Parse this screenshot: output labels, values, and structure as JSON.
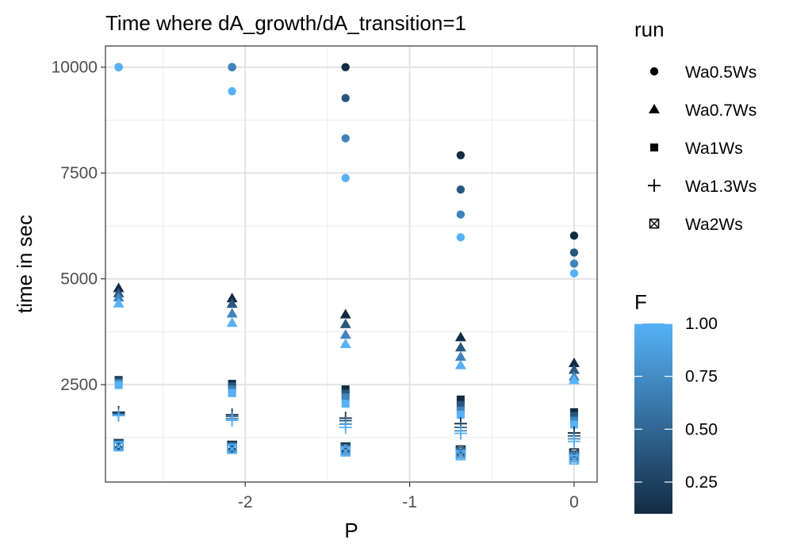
{
  "chart_data": {
    "type": "scatter",
    "title": "Time where dA_growth/dA_transition=1",
    "xlabel": "P",
    "ylabel": "time in sec",
    "xlim": [
      -2.85,
      0.14
    ],
    "ylim": [
      200,
      10500
    ],
    "x_ticks": [
      -2,
      -1,
      0
    ],
    "x_tick_labels": [
      "-2",
      "-1",
      "0"
    ],
    "y_ticks": [
      2500,
      5000,
      7500,
      10000
    ],
    "y_tick_labels": [
      "2500",
      "5000",
      "7500",
      "10000"
    ],
    "grid": true,
    "legend": {
      "placement": "right",
      "shape_title": "run",
      "color_title": "F",
      "colorbar_ticks": [
        0.25,
        0.5,
        0.75,
        1.0
      ],
      "colorbar_tick_labels": [
        "0.25",
        "0.50",
        "0.75",
        "1.00"
      ],
      "colorbar_range": [
        0.1,
        1.0
      ],
      "color_low": "#132B43",
      "color_high": "#56B1F7"
    },
    "series": [
      {
        "name": "Wa0.5Ws",
        "shape": "circle",
        "points": [
          {
            "x": -2.77,
            "y": 10000,
            "f": 0.1
          },
          {
            "x": -2.77,
            "y": 10000,
            "f": 0.4
          },
          {
            "x": -2.77,
            "y": 10000,
            "f": 0.7
          },
          {
            "x": -2.77,
            "y": 10000,
            "f": 1.0
          },
          {
            "x": -2.08,
            "y": 10000,
            "f": 0.1
          },
          {
            "x": -2.08,
            "y": 10000,
            "f": 0.4
          },
          {
            "x": -2.08,
            "y": 10000,
            "f": 0.7
          },
          {
            "x": -2.08,
            "y": 9430,
            "f": 1.0
          },
          {
            "x": -1.39,
            "y": 10000,
            "f": 0.1
          },
          {
            "x": -1.39,
            "y": 9270,
            "f": 0.4
          },
          {
            "x": -1.39,
            "y": 8320,
            "f": 0.7
          },
          {
            "x": -1.39,
            "y": 7380,
            "f": 1.0
          },
          {
            "x": -0.69,
            "y": 7920,
            "f": 0.1
          },
          {
            "x": -0.69,
            "y": 7110,
            "f": 0.4
          },
          {
            "x": -0.69,
            "y": 6520,
            "f": 0.7
          },
          {
            "x": -0.69,
            "y": 5980,
            "f": 1.0
          },
          {
            "x": 0.0,
            "y": 6020,
            "f": 0.1
          },
          {
            "x": 0.0,
            "y": 5620,
            "f": 0.4
          },
          {
            "x": 0.0,
            "y": 5360,
            "f": 0.7
          },
          {
            "x": 0.0,
            "y": 5130,
            "f": 1.0
          }
        ]
      },
      {
        "name": "Wa0.7Ws",
        "shape": "triangle",
        "points": [
          {
            "x": -2.77,
            "y": 4780,
            "f": 0.1
          },
          {
            "x": -2.77,
            "y": 4660,
            "f": 0.4
          },
          {
            "x": -2.77,
            "y": 4560,
            "f": 0.7
          },
          {
            "x": -2.77,
            "y": 4420,
            "f": 1.0
          },
          {
            "x": -2.08,
            "y": 4540,
            "f": 0.1
          },
          {
            "x": -2.08,
            "y": 4410,
            "f": 0.4
          },
          {
            "x": -2.08,
            "y": 4180,
            "f": 0.7
          },
          {
            "x": -2.08,
            "y": 3960,
            "f": 1.0
          },
          {
            "x": -1.39,
            "y": 4160,
            "f": 0.1
          },
          {
            "x": -1.39,
            "y": 3930,
            "f": 0.4
          },
          {
            "x": -1.39,
            "y": 3680,
            "f": 0.7
          },
          {
            "x": -1.39,
            "y": 3460,
            "f": 1.0
          },
          {
            "x": -0.69,
            "y": 3620,
            "f": 0.1
          },
          {
            "x": -0.69,
            "y": 3380,
            "f": 0.4
          },
          {
            "x": -0.69,
            "y": 3160,
            "f": 0.7
          },
          {
            "x": -0.69,
            "y": 2960,
            "f": 1.0
          },
          {
            "x": 0.0,
            "y": 3010,
            "f": 0.1
          },
          {
            "x": 0.0,
            "y": 2850,
            "f": 0.4
          },
          {
            "x": 0.0,
            "y": 2690,
            "f": 0.7
          },
          {
            "x": 0.0,
            "y": 2610,
            "f": 1.0
          }
        ]
      },
      {
        "name": "Wa1Ws",
        "shape": "square",
        "points": [
          {
            "x": -2.77,
            "y": 2610,
            "f": 0.1
          },
          {
            "x": -2.77,
            "y": 2570,
            "f": 0.4
          },
          {
            "x": -2.77,
            "y": 2530,
            "f": 0.7
          },
          {
            "x": -2.77,
            "y": 2490,
            "f": 1.0
          },
          {
            "x": -2.08,
            "y": 2520,
            "f": 0.1
          },
          {
            "x": -2.08,
            "y": 2460,
            "f": 0.4
          },
          {
            "x": -2.08,
            "y": 2380,
            "f": 0.7
          },
          {
            "x": -2.08,
            "y": 2300,
            "f": 1.0
          },
          {
            "x": -1.39,
            "y": 2390,
            "f": 0.1
          },
          {
            "x": -1.39,
            "y": 2290,
            "f": 0.4
          },
          {
            "x": -1.39,
            "y": 2200,
            "f": 0.7
          },
          {
            "x": -1.39,
            "y": 2050,
            "f": 1.0
          },
          {
            "x": -0.69,
            "y": 2150,
            "f": 0.1
          },
          {
            "x": -0.69,
            "y": 2020,
            "f": 0.4
          },
          {
            "x": -0.69,
            "y": 1890,
            "f": 0.7
          },
          {
            "x": -0.69,
            "y": 1790,
            "f": 1.0
          },
          {
            "x": 0.0,
            "y": 1850,
            "f": 0.1
          },
          {
            "x": 0.0,
            "y": 1760,
            "f": 0.4
          },
          {
            "x": 0.0,
            "y": 1650,
            "f": 0.7
          },
          {
            "x": 0.0,
            "y": 1560,
            "f": 1.0
          }
        ]
      },
      {
        "name": "Wa1.3Ws",
        "shape": "plus",
        "points": [
          {
            "x": -2.77,
            "y": 1850,
            "f": 0.1
          },
          {
            "x": -2.77,
            "y": 1820,
            "f": 0.4
          },
          {
            "x": -2.77,
            "y": 1790,
            "f": 0.7
          },
          {
            "x": -2.77,
            "y": 1770,
            "f": 1.0
          },
          {
            "x": -2.08,
            "y": 1790,
            "f": 0.1
          },
          {
            "x": -2.08,
            "y": 1750,
            "f": 0.4
          },
          {
            "x": -2.08,
            "y": 1700,
            "f": 0.7
          },
          {
            "x": -2.08,
            "y": 1660,
            "f": 1.0
          },
          {
            "x": -1.39,
            "y": 1710,
            "f": 0.1
          },
          {
            "x": -1.39,
            "y": 1650,
            "f": 0.4
          },
          {
            "x": -1.39,
            "y": 1570,
            "f": 0.7
          },
          {
            "x": -1.39,
            "y": 1490,
            "f": 1.0
          },
          {
            "x": -0.69,
            "y": 1580,
            "f": 0.1
          },
          {
            "x": -0.69,
            "y": 1490,
            "f": 0.4
          },
          {
            "x": -0.69,
            "y": 1410,
            "f": 0.7
          },
          {
            "x": -0.69,
            "y": 1350,
            "f": 1.0
          },
          {
            "x": 0.0,
            "y": 1360,
            "f": 0.1
          },
          {
            "x": 0.0,
            "y": 1290,
            "f": 0.4
          },
          {
            "x": 0.0,
            "y": 1220,
            "f": 0.7
          },
          {
            "x": 0.0,
            "y": 1160,
            "f": 1.0
          }
        ]
      },
      {
        "name": "Wa2Ws",
        "shape": "square-x",
        "points": [
          {
            "x": -2.77,
            "y": 1100,
            "f": 0.1
          },
          {
            "x": -2.77,
            "y": 1080,
            "f": 0.4
          },
          {
            "x": -2.77,
            "y": 1060,
            "f": 0.7
          },
          {
            "x": -2.77,
            "y": 1040,
            "f": 1.0
          },
          {
            "x": -2.08,
            "y": 1060,
            "f": 0.1
          },
          {
            "x": -2.08,
            "y": 1030,
            "f": 0.4
          },
          {
            "x": -2.08,
            "y": 1000,
            "f": 0.7
          },
          {
            "x": -2.08,
            "y": 980,
            "f": 1.0
          },
          {
            "x": -1.39,
            "y": 1020,
            "f": 0.1
          },
          {
            "x": -1.39,
            "y": 990,
            "f": 0.4
          },
          {
            "x": -1.39,
            "y": 950,
            "f": 0.7
          },
          {
            "x": -1.39,
            "y": 920,
            "f": 1.0
          },
          {
            "x": -0.69,
            "y": 950,
            "f": 0.1
          },
          {
            "x": -0.69,
            "y": 910,
            "f": 0.4
          },
          {
            "x": -0.69,
            "y": 870,
            "f": 0.7
          },
          {
            "x": -0.69,
            "y": 830,
            "f": 1.0
          },
          {
            "x": 0.0,
            "y": 880,
            "f": 0.1
          },
          {
            "x": 0.0,
            "y": 830,
            "f": 0.4
          },
          {
            "x": 0.0,
            "y": 780,
            "f": 0.7
          },
          {
            "x": 0.0,
            "y": 730,
            "f": 1.0
          }
        ]
      }
    ]
  }
}
